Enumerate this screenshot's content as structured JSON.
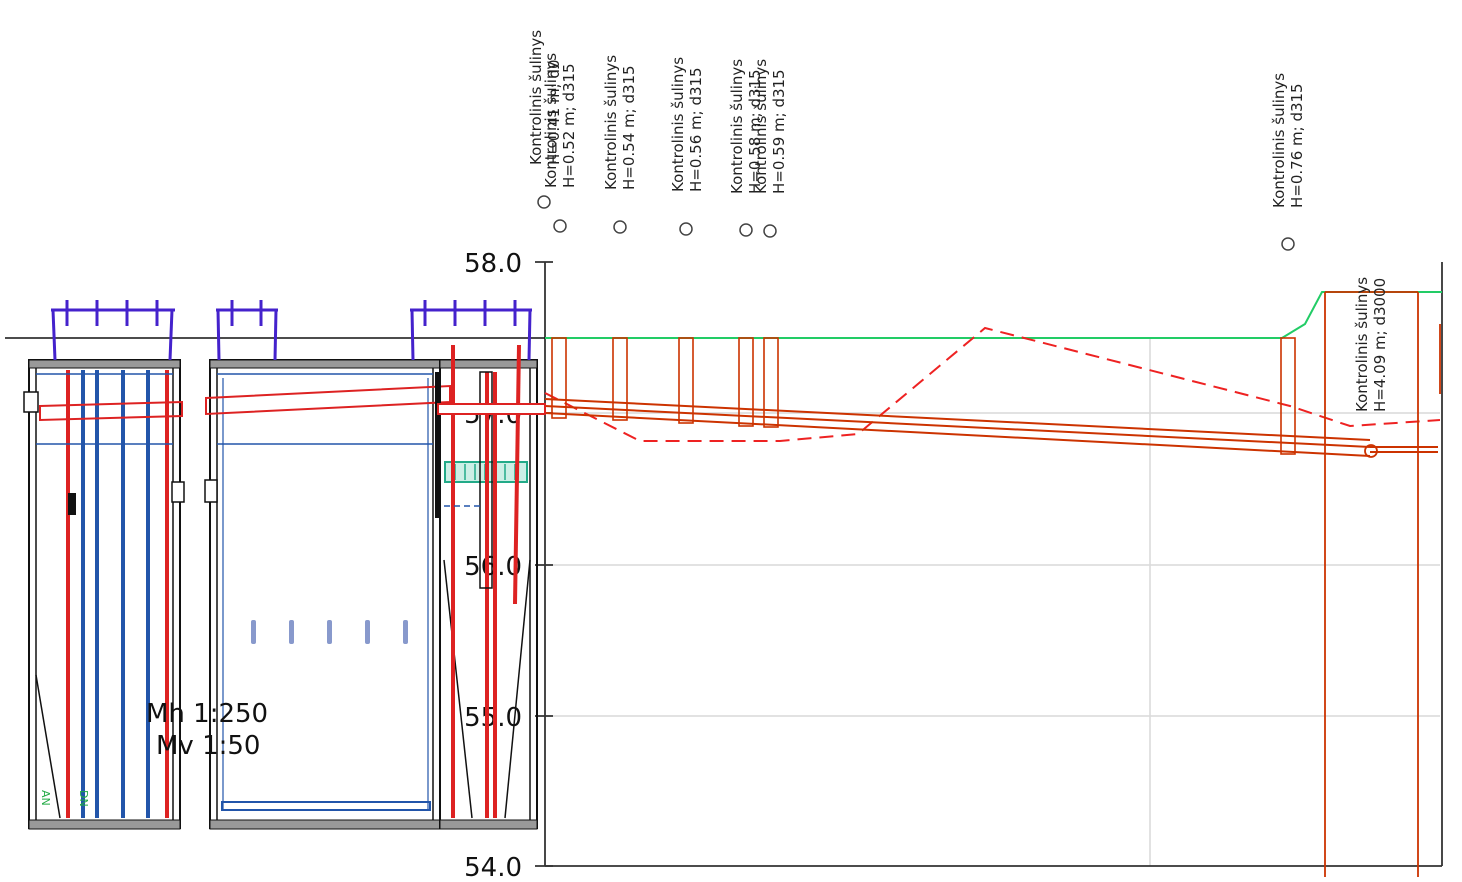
{
  "axis": {
    "y_min": 54.0,
    "y_max": 58.0,
    "tick_labels": [
      "58.0",
      "57.0",
      "56.0",
      "55.0",
      "54.0"
    ]
  },
  "scales": {
    "horizontal": "Mh 1:250",
    "vertical": "Mv 1:50"
  },
  "wells": [
    {
      "line1": "Kontrolinis šulinys",
      "line2": "H=0.41 m; d0"
    },
    {
      "line1": "Kontrolinis šulinys",
      "line2": "H=0.52 m; d315"
    },
    {
      "line1": "Kontrolinis šulinys",
      "line2": "H=0.54 m; d315"
    },
    {
      "line1": "Kontrolinis šulinys",
      "line2": "H=0.56 m; d315"
    },
    {
      "line1": "Kontrolinis šulinys",
      "line2": "H=0.58 m; d315"
    },
    {
      "line1": "Kontrolinis šulinys",
      "line2": "H=0.59 m; d315"
    },
    {
      "line1": "Kontrolinis šulinys",
      "line2": "H=0.76 m; d315"
    },
    {
      "line1": "Kontrolinis šulinys",
      "line2": "H=4.09 m; d3000"
    }
  ],
  "side_labels": [
    "AN",
    "DN"
  ],
  "colors": {
    "grid": "#d9d9d9",
    "axis": "#333333",
    "pipe": "#cc3300",
    "ground": "#22cc66",
    "dashed": "#ee2222",
    "tank_blue": "#2255aa",
    "tank_red": "#dd2222",
    "lid": "#4422cc",
    "pump": "#22aa88"
  }
}
